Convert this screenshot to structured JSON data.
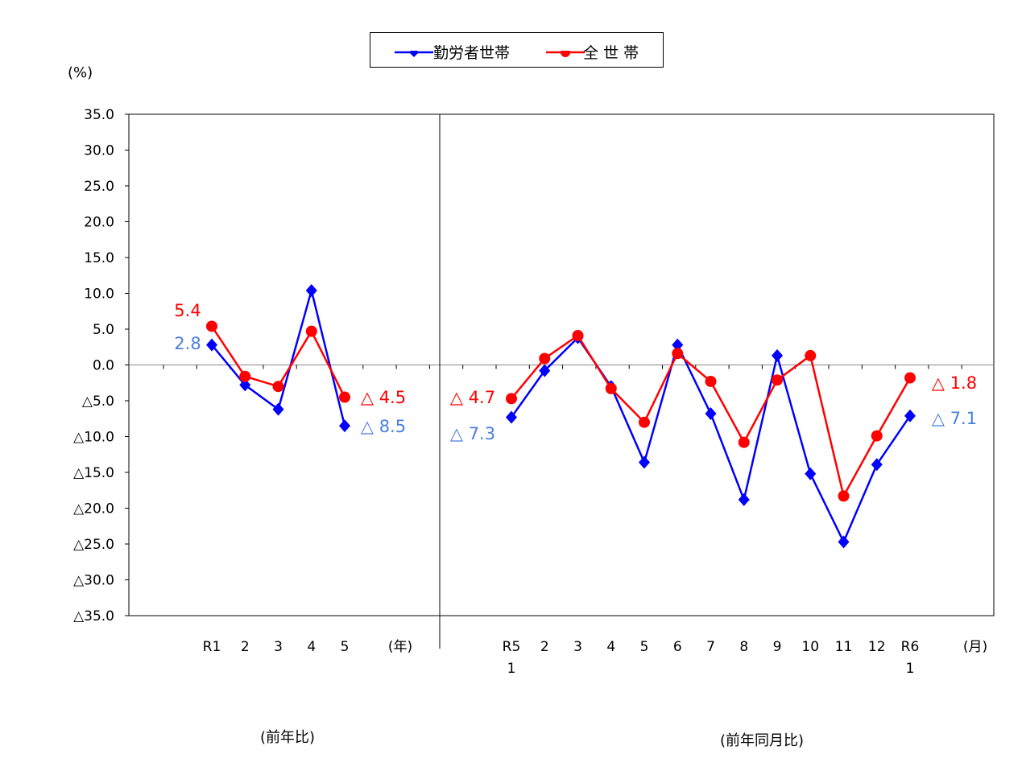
{
  "chart_data": {
    "type": "line",
    "ylabel": "(%)",
    "ylim": [
      -35,
      35
    ],
    "ytick_step": 5,
    "ytick_labels": [
      "35.0",
      "30.0",
      "25.0",
      "20.0",
      "15.0",
      "10.0",
      "5.0",
      "0.0",
      "△5.0",
      "△10.0",
      "△15.0",
      "△20.0",
      "△25.0",
      "△30.0",
      "△35.0"
    ],
    "grid": false,
    "legend_placement": "top-center",
    "sections": [
      {
        "caption": "(前年比)",
        "unit": "(年)",
        "categories": [
          "R1",
          "2",
          "3",
          "4",
          "5"
        ],
        "series": [
          {
            "name": "勤労者世帯",
            "color": "#0000ff",
            "marker": "diamond",
            "values": [
              2.8,
              -2.8,
              -6.2,
              10.4,
              -8.5
            ]
          },
          {
            "name": "全 世 帯",
            "color": "#ff0000",
            "marker": "circle",
            "values": [
              5.4,
              -1.6,
              -3.0,
              4.7,
              -4.5
            ]
          }
        ],
        "annotations": [
          {
            "text": "5.4",
            "color": "#ff0000"
          },
          {
            "text": "2.8",
            "color": "#4a7fe0"
          },
          {
            "text": "△ 4.5",
            "color": "#ff0000"
          },
          {
            "text": "△ 8.5",
            "color": "#4a7fe0"
          }
        ]
      },
      {
        "caption": "(前年同月比)",
        "unit": "(月)",
        "categories": [
          "R5\n1",
          "2",
          "3",
          "4",
          "5",
          "6",
          "7",
          "8",
          "9",
          "10",
          "11",
          "12",
          "R6\n1"
        ],
        "series": [
          {
            "name": "勤労者世帯",
            "color": "#0000ff",
            "marker": "diamond",
            "values": [
              -7.3,
              -0.8,
              3.8,
              -3.0,
              -13.6,
              2.8,
              -6.8,
              -18.8,
              1.3,
              -15.2,
              -24.7,
              -13.9,
              -7.1
            ]
          },
          {
            "name": "全 世 帯",
            "color": "#ff0000",
            "marker": "circle",
            "values": [
              -4.7,
              0.9,
              4.1,
              -3.3,
              -8.0,
              1.6,
              -2.3,
              -10.8,
              -2.1,
              1.3,
              -18.3,
              -9.9,
              -1.8
            ]
          }
        ],
        "annotations": [
          {
            "text": "△ 4.7",
            "color": "#ff0000"
          },
          {
            "text": "△ 7.3",
            "color": "#4a7fe0"
          },
          {
            "text": "△ 1.8",
            "color": "#ff0000"
          },
          {
            "text": "△ 7.1",
            "color": "#4a7fe0"
          }
        ]
      }
    ]
  },
  "legend": {
    "series1": "勤労者世帯",
    "series2": "全 世 帯"
  }
}
